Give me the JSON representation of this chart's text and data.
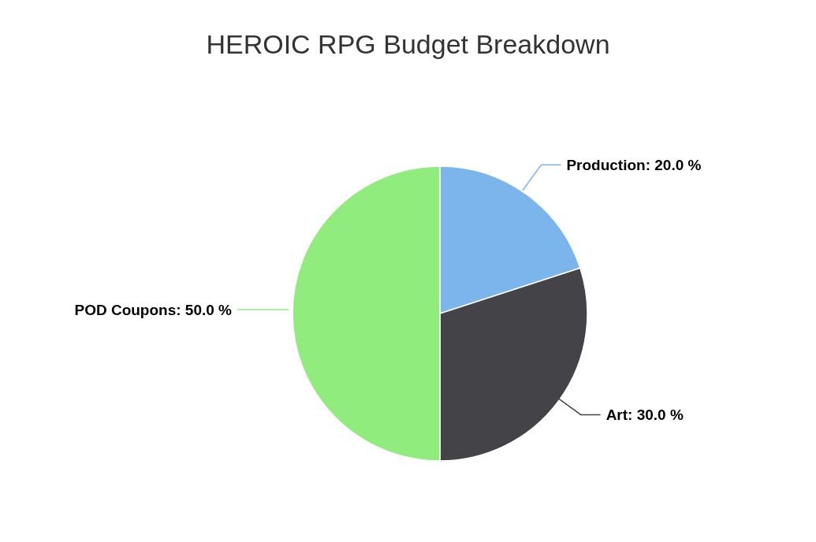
{
  "chart_data": {
    "type": "pie",
    "title": "HEROIC RPG Budget Breakdown",
    "categories": [
      "Production",
      "Art",
      "POD Coupons"
    ],
    "values": [
      20,
      30,
      50
    ],
    "value_labels": [
      "20.0 %",
      "30.0 %",
      "50.0 %"
    ],
    "colors": [
      "#7cb5ec",
      "#434348",
      "#90ed7d"
    ]
  }
}
